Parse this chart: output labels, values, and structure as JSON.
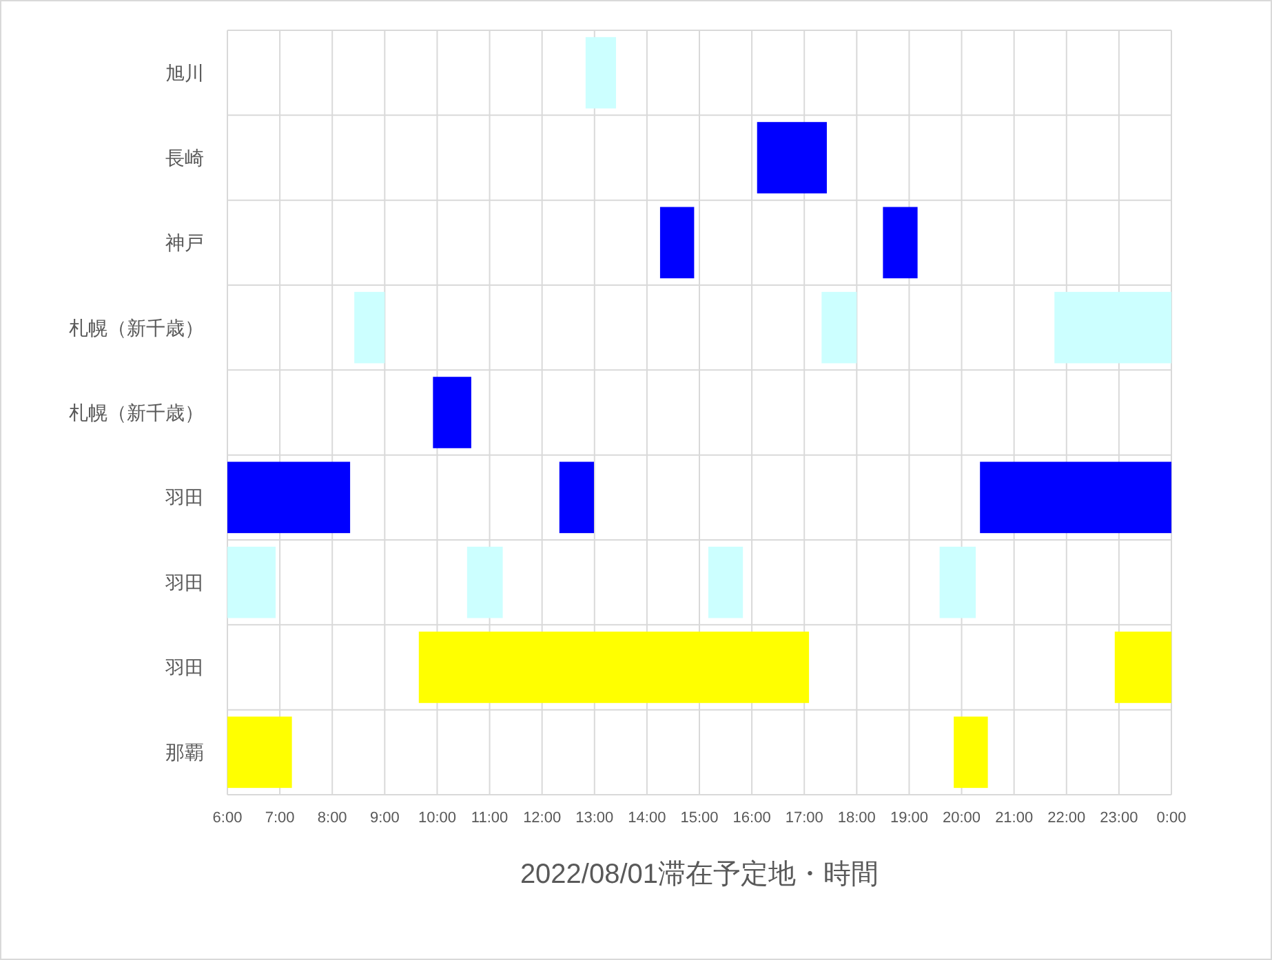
{
  "chart_data": {
    "type": "bar",
    "orientation": "horizontal",
    "xlabel": "2022/08/01滞在予定地・時間",
    "categories": [
      "旭川",
      "長崎",
      "神戸",
      "札幌（新千歳）",
      "札幌（新千歳）",
      "羽田",
      "羽田",
      "羽田",
      "那覇"
    ],
    "series": [
      {
        "base": [
          12.83,
          16.1,
          14.25,
          8.42,
          9.92,
          6,
          6,
          9.65,
          6
        ],
        "values": [
          0.58,
          1.33,
          0.65,
          0.58,
          0.73,
          2.34,
          0.92,
          7.44,
          1.23
        ],
        "colors": [
          "#ccffff",
          "#0000ff",
          "#0000ff",
          "#ccffff",
          "#0000ff",
          "#0000ff",
          "#ccffff",
          "#ffff00",
          "#ffff00"
        ]
      },
      {
        "base": [
          null,
          null,
          18.5,
          17.33,
          null,
          12.33,
          10.57,
          22.92,
          19.85
        ],
        "values": [
          null,
          null,
          0.66,
          0.67,
          null,
          0.66,
          0.68,
          1.08,
          0.65
        ],
        "colors": [
          null,
          null,
          "#0000ff",
          "#ccffff",
          null,
          "#0000ff",
          "#ccffff",
          "#ffff00",
          "#ffff00"
        ]
      },
      {
        "base": [
          null,
          null,
          null,
          21.77,
          null,
          20.35,
          15.17,
          null,
          null
        ],
        "values": [
          null,
          null,
          null,
          2.23,
          null,
          3.65,
          0.66,
          null,
          null
        ],
        "colors": [
          null,
          null,
          null,
          "#ccffff",
          null,
          "#0000ff",
          "#ccffff",
          null,
          null
        ]
      },
      {
        "base": [
          null,
          null,
          null,
          null,
          null,
          null,
          19.58,
          null,
          null
        ],
        "values": [
          null,
          null,
          null,
          null,
          null,
          null,
          0.69,
          null,
          null
        ],
        "colors": [
          null,
          null,
          null,
          null,
          null,
          null,
          "#ccffff",
          null,
          null
        ]
      }
    ],
    "xlim": [
      6,
      24
    ],
    "xticks": [
      {
        "value": 6,
        "label": "6:00"
      },
      {
        "value": 7,
        "label": "7:00"
      },
      {
        "value": 8,
        "label": "8:00"
      },
      {
        "value": 9,
        "label": "9:00"
      },
      {
        "value": 10,
        "label": "10:00"
      },
      {
        "value": 11,
        "label": "11:00"
      },
      {
        "value": 12,
        "label": "12:00"
      },
      {
        "value": 13,
        "label": "13:00"
      },
      {
        "value": 14,
        "label": "14:00"
      },
      {
        "value": 15,
        "label": "15:00"
      },
      {
        "value": 16,
        "label": "16:00"
      },
      {
        "value": 17,
        "label": "17:00"
      },
      {
        "value": 18,
        "label": "18:00"
      },
      {
        "value": 19,
        "label": "19:00"
      },
      {
        "value": 20,
        "label": "20:00"
      },
      {
        "value": 21,
        "label": "21:00"
      },
      {
        "value": 22,
        "label": "22:00"
      },
      {
        "value": 23,
        "label": "23:00"
      },
      {
        "value": 24,
        "label": "0:00"
      }
    ],
    "grid": true
  }
}
